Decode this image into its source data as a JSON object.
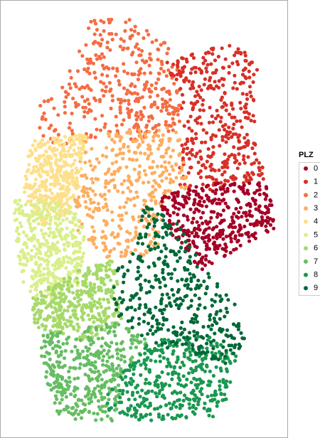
{
  "legend": {
    "title": "PLZ",
    "items": [
      {
        "label": "0",
        "color": "#a50026"
      },
      {
        "label": "1",
        "color": "#d73027"
      },
      {
        "label": "2",
        "color": "#f46d43"
      },
      {
        "label": "3",
        "color": "#fdae61"
      },
      {
        "label": "4",
        "color": "#fee08b"
      },
      {
        "label": "5",
        "color": "#d9ef8b"
      },
      {
        "label": "6",
        "color": "#a6d96a"
      },
      {
        "label": "7",
        "color": "#66bd63"
      },
      {
        "label": "8",
        "color": "#1a9850"
      },
      {
        "label": "9",
        "color": "#006837"
      }
    ]
  }
}
